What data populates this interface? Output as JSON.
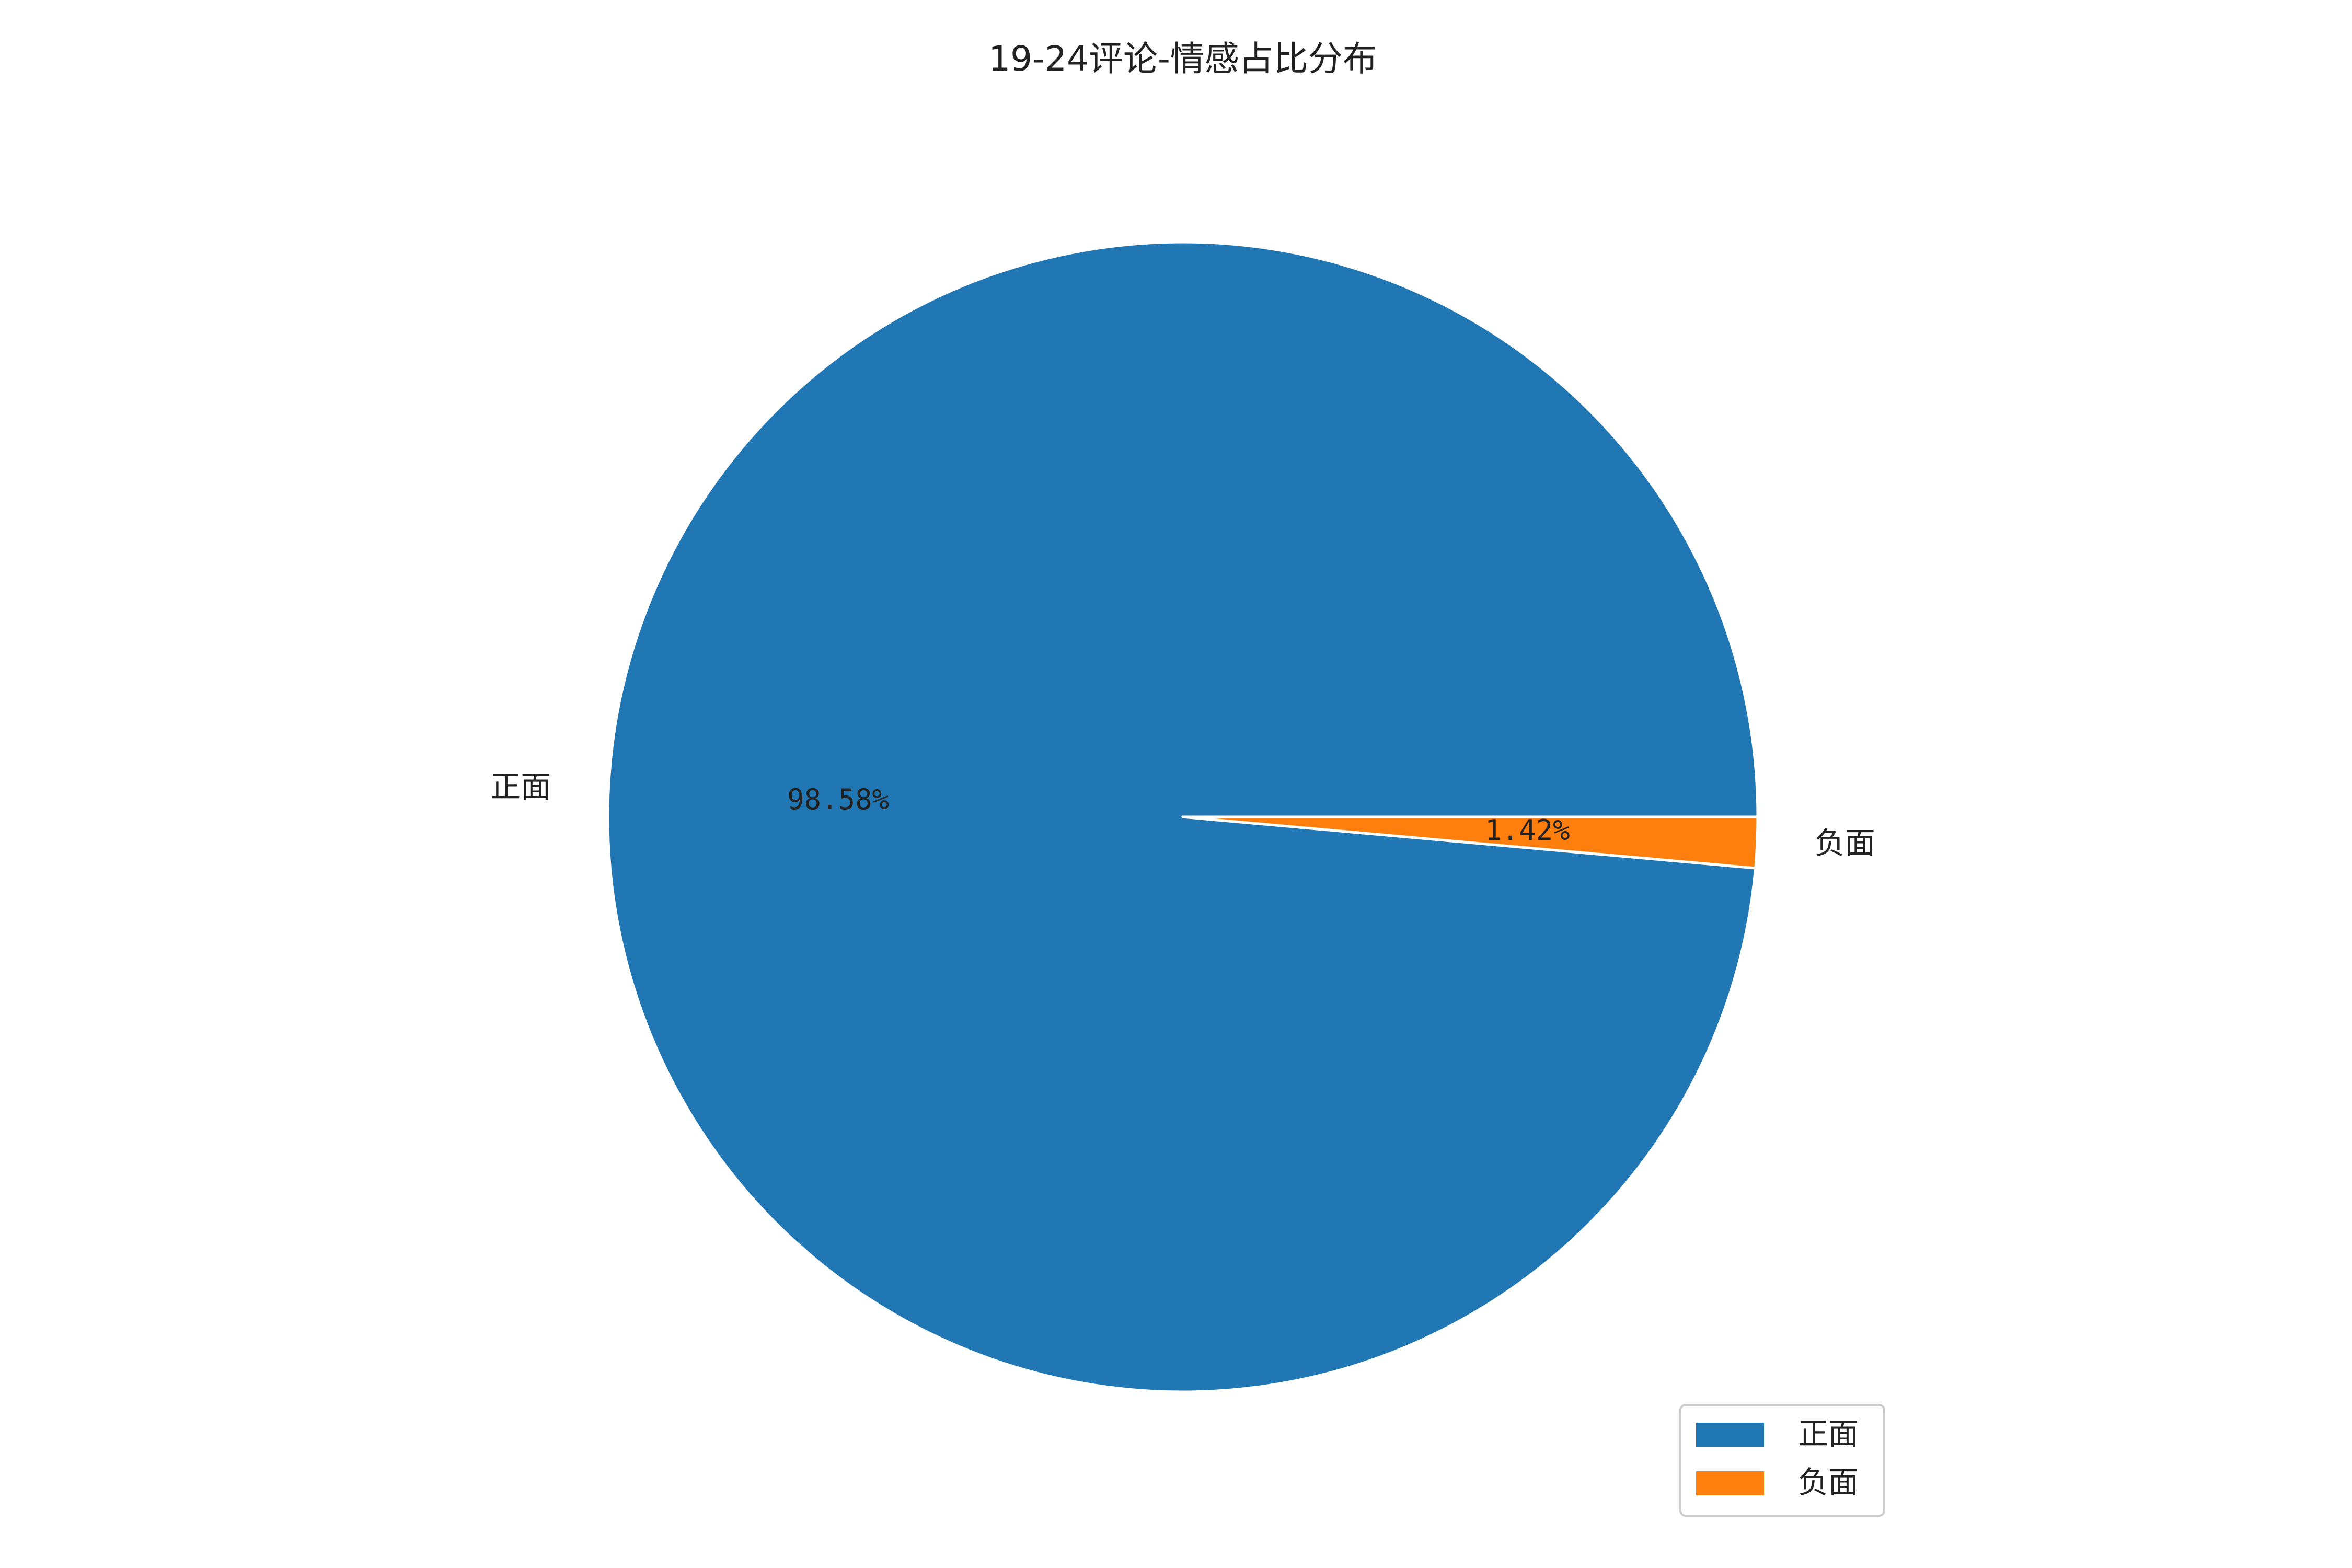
{
  "chart_data": {
    "type": "pie",
    "title": "19-24评论-情感占比分布",
    "categories": [
      "正面",
      "负面"
    ],
    "values": [
      98.58,
      1.42
    ],
    "value_labels": [
      "98.58%",
      "1.42%"
    ],
    "colors": [
      "#2077b4",
      "#ff7f0e"
    ],
    "start": "east (3 o'clock)",
    "direction": "counter-clockwise",
    "legend": {
      "position": "lower-right",
      "entries": [
        "正面",
        "负面"
      ]
    }
  }
}
